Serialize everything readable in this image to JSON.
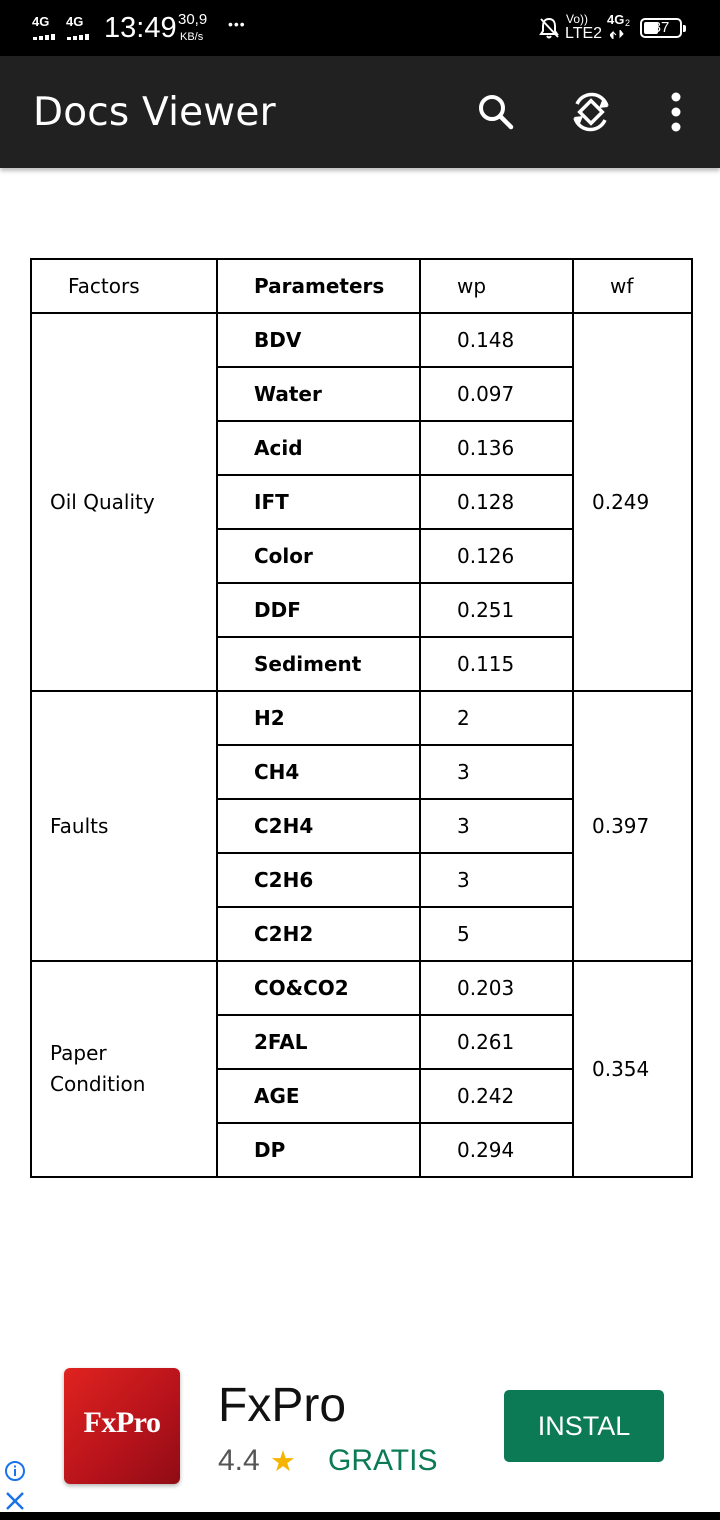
{
  "status_bar": {
    "network1": "4G",
    "network2": "4G",
    "time": "13:49",
    "speed_value": "30,9",
    "speed_unit": "KB/s",
    "more": "•••",
    "volte": "Vo))",
    "lte": "LTE2",
    "network3": "4G",
    "network3_sub": "2",
    "battery": "37"
  },
  "app_bar": {
    "title": "Docs Viewer",
    "search_icon": "search-icon",
    "rotate_icon": "rotate-icon",
    "more_icon": "more-vertical-icon"
  },
  "table": {
    "headers": [
      "Factors",
      "Parameters",
      "wp",
      "wf"
    ],
    "groups": [
      {
        "factor": "Oil Quality",
        "wf": "0.249",
        "rows": [
          {
            "param": "BDV",
            "wp": "0.148"
          },
          {
            "param": "Water",
            "wp": "0.097"
          },
          {
            "param": "Acid",
            "wp": "0.136"
          },
          {
            "param": "IFT",
            "wp": "0.128"
          },
          {
            "param": "Color",
            "wp": "0.126"
          },
          {
            "param": "DDF",
            "wp": "0.251"
          },
          {
            "param": "Sediment",
            "wp": "0.115"
          }
        ]
      },
      {
        "factor": "Faults",
        "wf": "0.397",
        "rows": [
          {
            "param": "H2",
            "wp": "2"
          },
          {
            "param": "CH4",
            "wp": "3"
          },
          {
            "param": "C2H4",
            "wp": "3"
          },
          {
            "param": "C2H6",
            "wp": "3"
          },
          {
            "param": "C2H2",
            "wp": "5"
          }
        ]
      },
      {
        "factor": "Paper\nCondition",
        "wf": "0.354",
        "rows": [
          {
            "param": "CO&CO2",
            "wp": "0.203"
          },
          {
            "param": "2FAL",
            "wp": "0.261"
          },
          {
            "param": "AGE",
            "wp": "0.242"
          },
          {
            "param": "DP",
            "wp": "0.294"
          }
        ]
      }
    ]
  },
  "ad": {
    "logo_text": "FxPro",
    "name": "FxPro",
    "rating": "4.4",
    "star": "★",
    "price": "GRATIS",
    "install_label": "INSTAL",
    "info_icon": "info-icon",
    "close_icon": "close-icon",
    "colors": {
      "logo": "#c8191f",
      "install": "#0b7a55",
      "star": "#f4b400"
    }
  }
}
